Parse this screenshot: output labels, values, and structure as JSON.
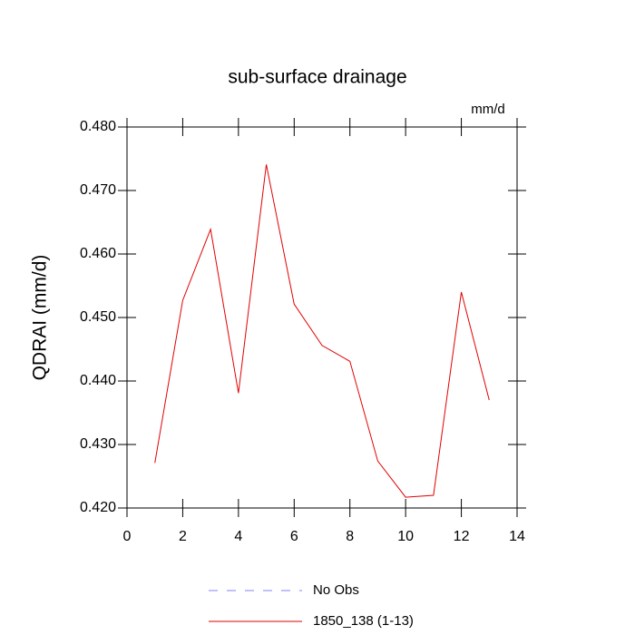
{
  "chart_data": {
    "type": "line",
    "title": "sub-surface drainage",
    "units": "mm/d",
    "y_label": "QDRAI  (mm/d)",
    "x": [
      1,
      2,
      3,
      4,
      5,
      6,
      7,
      8,
      9,
      10,
      11,
      12,
      13
    ],
    "series": [
      {
        "name": "No Obs",
        "color": "#8080ff",
        "dashed": true,
        "values": [
          null,
          null,
          null,
          null,
          null,
          null,
          null,
          null,
          null,
          null,
          null,
          null,
          null
        ]
      },
      {
        "name": "1850_138 (1-13)",
        "color": "#e00000",
        "dashed": false,
        "values": [
          0.4271,
          0.4527,
          0.4639,
          0.4381,
          0.4741,
          0.4521,
          0.4456,
          0.4431,
          0.4274,
          0.4217,
          0.422,
          0.454,
          0.437
        ]
      }
    ],
    "xlim": [
      0,
      14
    ],
    "xticks": [
      0,
      2,
      4,
      6,
      8,
      10,
      12,
      14
    ],
    "ylim": [
      0.42,
      0.48
    ],
    "yticks": [
      {
        "value": 0.42,
        "label": "0.420"
      },
      {
        "value": 0.43,
        "label": "0.430"
      },
      {
        "value": 0.44,
        "label": "0.440"
      },
      {
        "value": 0.45,
        "label": "0.450"
      },
      {
        "value": 0.46,
        "label": "0.460"
      },
      {
        "value": 0.47,
        "label": "0.470"
      },
      {
        "value": 0.48,
        "label": "0.480"
      }
    ],
    "grid": false
  }
}
